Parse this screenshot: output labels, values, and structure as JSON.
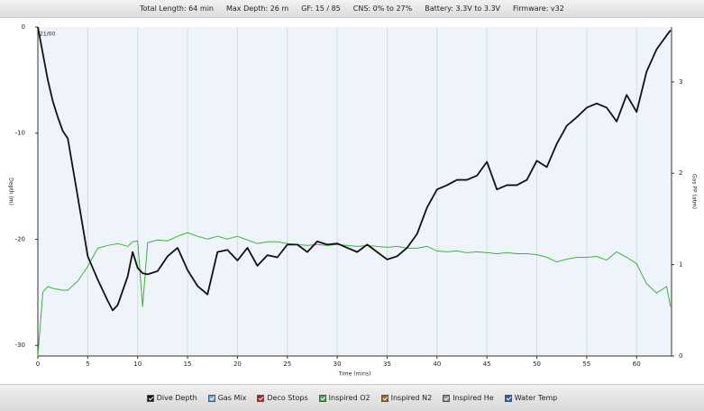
{
  "header": {
    "items": [
      "Total Length: 64 min",
      "Max Depth: 26 m",
      "GF: 15 / 85",
      "CNS: 0% to 27%",
      "Battery: 3.3V to 3.3V",
      "Firmware: v32"
    ]
  },
  "chart_data": {
    "type": "line",
    "xlabel": "Time (mins)",
    "ylabel": "Depth (m)",
    "y2label": "Gas PP (atm)",
    "annotation": "21/00",
    "x": [
      0,
      0.5,
      1,
      1.5,
      2,
      2.5,
      3,
      4,
      5,
      6,
      7,
      7.5,
      8,
      9,
      9.5,
      10,
      10.5,
      11,
      12,
      13,
      14,
      15,
      16,
      17,
      18,
      19,
      20,
      21,
      22,
      23,
      24,
      25,
      26,
      27,
      28,
      29,
      30,
      31,
      32,
      33,
      34,
      35,
      36,
      37,
      38,
      39,
      40,
      41,
      42,
      43,
      44,
      45,
      46,
      47,
      48,
      49,
      50,
      51,
      52,
      53,
      54,
      55,
      56,
      57,
      58,
      59,
      60,
      61,
      62,
      63,
      63.4
    ],
    "series": [
      {
        "name": "Dive Depth",
        "color": "#111111",
        "axis": "y",
        "values": [
          0,
          -2.5,
          -5,
          -7,
          -8.5,
          -9.8,
          -10.5,
          -16,
          -21.6,
          -23.8,
          -25.8,
          -26.7,
          -26.2,
          -23.5,
          -21.2,
          -22.7,
          -23.2,
          -23.3,
          -23,
          -21.6,
          -20.8,
          -22.9,
          -24.4,
          -25.2,
          -21.2,
          -21,
          -22,
          -20.8,
          -22.5,
          -21.5,
          -21.7,
          -20.5,
          -20.5,
          -21.2,
          -20.2,
          -20.5,
          -20.4,
          -20.8,
          -21.2,
          -20.5,
          -21.2,
          -21.9,
          -21.6,
          -20.8,
          -19.5,
          -17,
          -15.3,
          -14.9,
          -14.4,
          -14.4,
          -14,
          -12.7,
          -15.3,
          -14.9,
          -14.9,
          -14.4,
          -12.6,
          -13.2,
          -11,
          -9.3,
          -8.5,
          -7.6,
          -7.2,
          -7.6,
          -8.9,
          -6.4,
          -8,
          -4.2,
          -2.1,
          -0.8,
          -0.3
        ]
      },
      {
        "name": "Inspired O2",
        "color": "#3cb43c",
        "axis": "y2",
        "values": [
          0,
          0.7,
          0.76,
          0.74,
          0.73,
          0.72,
          0.72,
          0.82,
          0.98,
          1.18,
          1.21,
          1.22,
          1.23,
          1.2,
          1.25,
          1.26,
          0.54,
          1.24,
          1.27,
          1.26,
          1.31,
          1.35,
          1.31,
          1.28,
          1.31,
          1.28,
          1.31,
          1.27,
          1.23,
          1.25,
          1.25,
          1.23,
          1.22,
          1.21,
          1.22,
          1.21,
          1.22,
          1.21,
          1.2,
          1.21,
          1.2,
          1.19,
          1.2,
          1.18,
          1.18,
          1.2,
          1.15,
          1.14,
          1.15,
          1.13,
          1.14,
          1.13,
          1.12,
          1.13,
          1.12,
          1.12,
          1.11,
          1.08,
          1.03,
          1.06,
          1.08,
          1.08,
          1.09,
          1.05,
          1.14,
          1.08,
          1.01,
          0.79,
          0.69,
          0.76,
          0.54
        ]
      }
    ],
    "toggles": [
      {
        "name": "Gas Mix",
        "color": "#6aaee0"
      },
      {
        "name": "Deco Stops",
        "color": "#b22222"
      },
      {
        "name": "Inspired N2",
        "color": "#a0681a"
      },
      {
        "name": "Inspired He",
        "color": "#909090"
      },
      {
        "name": "Water Temp",
        "color": "#2060c0"
      }
    ],
    "xlim": [
      0,
      63.5
    ],
    "xticks": [
      0,
      5,
      10,
      15,
      20,
      25,
      30,
      35,
      40,
      45,
      50,
      55,
      60
    ],
    "ylim": [
      -31,
      0
    ],
    "yticks": [
      0,
      -10,
      -20,
      -30
    ],
    "y2lim": [
      0,
      3.6
    ],
    "y2ticks": [
      0,
      1,
      2,
      3
    ],
    "grid": true
  }
}
